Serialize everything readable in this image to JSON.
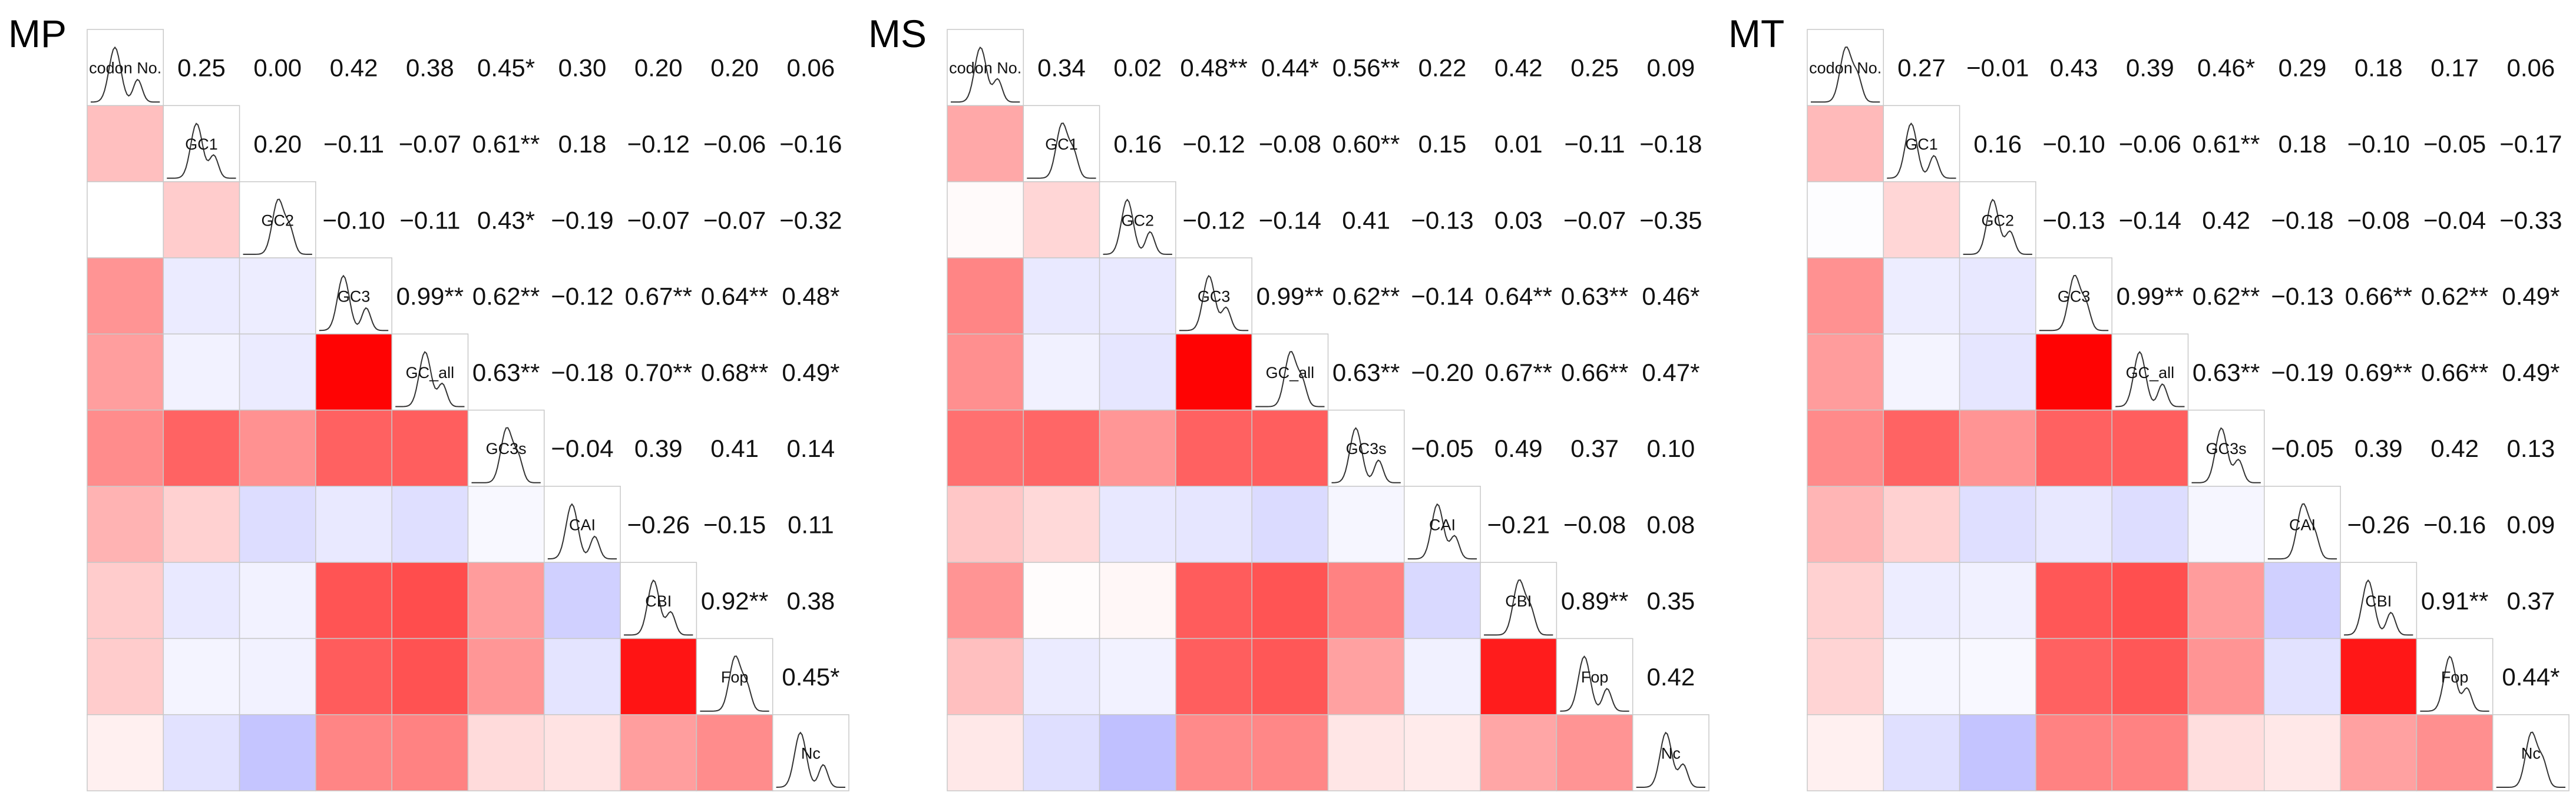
{
  "chart_data": [
    {
      "type": "heatmap",
      "title": "MP",
      "variables": [
        "codon No.",
        "GC1",
        "GC2",
        "GC3",
        "GC_all",
        "GC3s",
        "CAI",
        "CBI",
        "Fop",
        "Nc"
      ],
      "matrix": [
        [
          1,
          0.25,
          0.0,
          0.42,
          0.38,
          0.45,
          0.3,
          0.2,
          0.2,
          0.06
        ],
        [
          0.25,
          1,
          0.2,
          -0.11,
          -0.07,
          0.61,
          0.18,
          -0.12,
          -0.06,
          -0.16
        ],
        [
          0.0,
          0.2,
          1,
          -0.1,
          -0.11,
          0.43,
          -0.19,
          -0.07,
          -0.07,
          -0.32
        ],
        [
          0.42,
          -0.11,
          -0.1,
          1,
          0.99,
          0.62,
          -0.12,
          0.67,
          0.64,
          0.48
        ],
        [
          0.38,
          -0.07,
          -0.11,
          0.99,
          1,
          0.63,
          -0.18,
          0.7,
          0.68,
          0.49
        ],
        [
          0.45,
          0.61,
          0.43,
          0.62,
          0.63,
          1,
          -0.04,
          0.39,
          0.41,
          0.14
        ],
        [
          0.3,
          0.18,
          -0.19,
          -0.12,
          -0.18,
          -0.04,
          1,
          -0.26,
          -0.15,
          0.11
        ],
        [
          0.2,
          -0.12,
          -0.07,
          0.67,
          0.7,
          0.39,
          -0.26,
          1,
          0.92,
          0.38
        ],
        [
          0.2,
          -0.06,
          -0.07,
          0.64,
          0.68,
          0.41,
          -0.15,
          0.92,
          1,
          0.45
        ],
        [
          0.06,
          -0.16,
          -0.32,
          0.48,
          0.49,
          0.14,
          0.11,
          0.38,
          0.45,
          1
        ]
      ],
      "labels": [
        [
          "",
          "0.25",
          "0.00",
          "0.42",
          "0.38",
          "0.45*",
          "0.30",
          "0.20",
          "0.20",
          "0.06"
        ],
        [
          "",
          "",
          "0.20",
          "−0.11",
          "−0.07",
          "0.61**",
          "0.18",
          "−0.12",
          "−0.06",
          "−0.16"
        ],
        [
          "",
          "",
          "",
          "−0.10",
          "−0.11",
          "0.43*",
          "−0.19",
          "−0.07",
          "−0.07",
          "−0.32"
        ],
        [
          "",
          "",
          "",
          "",
          "0.99**",
          "0.62**",
          "−0.12",
          "0.67**",
          "0.64**",
          "0.48*"
        ],
        [
          "",
          "",
          "",
          "",
          "",
          "0.63**",
          "−0.18",
          "0.70**",
          "0.68**",
          "0.49*"
        ],
        [
          "",
          "",
          "",
          "",
          "",
          "",
          "−0.04",
          "0.39",
          "0.41",
          "0.14"
        ],
        [
          "",
          "",
          "",
          "",
          "",
          "",
          "",
          "−0.26",
          "−0.15",
          "0.11"
        ],
        [
          "",
          "",
          "",
          "",
          "",
          "",
          "",
          "",
          "0.92**",
          "0.38"
        ],
        [
          "",
          "",
          "",
          "",
          "",
          "",
          "",
          "",
          "",
          "0.45*"
        ],
        [
          "",
          "",
          "",
          "",
          "",
          "",
          "",
          "",
          "",
          ""
        ]
      ]
    },
    {
      "type": "heatmap",
      "title": "MS",
      "variables": [
        "codon No.",
        "GC1",
        "GC2",
        "GC3",
        "GC_all",
        "GC3s",
        "CAI",
        "CBI",
        "Fop",
        "Nc"
      ],
      "matrix": [
        [
          1,
          0.34,
          0.02,
          0.48,
          0.44,
          0.56,
          0.22,
          0.42,
          0.25,
          0.09
        ],
        [
          0.34,
          1,
          0.16,
          -0.12,
          -0.08,
          0.6,
          0.15,
          0.01,
          -0.11,
          -0.18
        ],
        [
          0.02,
          0.16,
          1,
          -0.12,
          -0.14,
          0.41,
          -0.13,
          0.03,
          -0.07,
          -0.35
        ],
        [
          0.48,
          -0.12,
          -0.12,
          1,
          0.99,
          0.62,
          -0.14,
          0.64,
          0.63,
          0.46
        ],
        [
          0.44,
          -0.08,
          -0.14,
          0.99,
          1,
          0.63,
          -0.2,
          0.67,
          0.66,
          0.47
        ],
        [
          0.56,
          0.6,
          0.41,
          0.62,
          0.63,
          1,
          -0.05,
          0.49,
          0.37,
          0.1
        ],
        [
          0.22,
          0.15,
          -0.13,
          -0.14,
          -0.2,
          -0.05,
          1,
          -0.21,
          -0.08,
          0.08
        ],
        [
          0.42,
          0.01,
          0.03,
          0.64,
          0.67,
          0.49,
          -0.21,
          1,
          0.89,
          0.35
        ],
        [
          0.25,
          -0.11,
          -0.07,
          0.63,
          0.66,
          0.37,
          -0.08,
          0.89,
          1,
          0.42
        ],
        [
          0.09,
          -0.18,
          -0.35,
          0.46,
          0.47,
          0.1,
          0.08,
          0.35,
          0.42,
          1
        ]
      ],
      "labels": [
        [
          "",
          "0.34",
          "0.02",
          "0.48**",
          "0.44*",
          "0.56**",
          "0.22",
          "0.42",
          "0.25",
          "0.09"
        ],
        [
          "",
          "",
          "0.16",
          "−0.12",
          "−0.08",
          "0.60**",
          "0.15",
          "0.01",
          "−0.11",
          "−0.18"
        ],
        [
          "",
          "",
          "",
          "−0.12",
          "−0.14",
          "0.41",
          "−0.13",
          "0.03",
          "−0.07",
          "−0.35"
        ],
        [
          "",
          "",
          "",
          "",
          "0.99**",
          "0.62**",
          "−0.14",
          "0.64**",
          "0.63**",
          "0.46*"
        ],
        [
          "",
          "",
          "",
          "",
          "",
          "0.63**",
          "−0.20",
          "0.67**",
          "0.66**",
          "0.47*"
        ],
        [
          "",
          "",
          "",
          "",
          "",
          "",
          "−0.05",
          "0.49",
          "0.37",
          "0.10"
        ],
        [
          "",
          "",
          "",
          "",
          "",
          "",
          "",
          "−0.21",
          "−0.08",
          "0.08"
        ],
        [
          "",
          "",
          "",
          "",
          "",
          "",
          "",
          "",
          "0.89**",
          "0.35"
        ],
        [
          "",
          "",
          "",
          "",
          "",
          "",
          "",
          "",
          "",
          "0.42"
        ],
        [
          "",
          "",
          "",
          "",
          "",
          "",
          "",
          "",
          "",
          ""
        ]
      ]
    },
    {
      "type": "heatmap",
      "title": "MT",
      "variables": [
        "codon No.",
        "GC1",
        "GC2",
        "GC3",
        "GC_all",
        "GC3s",
        "CAI",
        "CBI",
        "Fop",
        "Nc"
      ],
      "matrix": [
        [
          1,
          0.27,
          -0.01,
          0.43,
          0.39,
          0.46,
          0.29,
          0.18,
          0.17,
          0.06
        ],
        [
          0.27,
          1,
          0.16,
          -0.1,
          -0.06,
          0.61,
          0.18,
          -0.1,
          -0.05,
          -0.17
        ],
        [
          -0.01,
          0.16,
          1,
          -0.13,
          -0.14,
          0.42,
          -0.18,
          -0.08,
          -0.04,
          -0.33
        ],
        [
          0.43,
          -0.1,
          -0.13,
          1,
          0.99,
          0.62,
          -0.13,
          0.66,
          0.62,
          0.49
        ],
        [
          0.39,
          -0.06,
          -0.14,
          0.99,
          1,
          0.63,
          -0.19,
          0.69,
          0.66,
          0.49
        ],
        [
          0.46,
          0.61,
          0.42,
          0.62,
          0.63,
          1,
          -0.05,
          0.39,
          0.42,
          0.13
        ],
        [
          0.29,
          0.18,
          -0.18,
          -0.13,
          -0.19,
          -0.05,
          1,
          -0.26,
          -0.16,
          0.09
        ],
        [
          0.18,
          -0.1,
          -0.08,
          0.66,
          0.69,
          0.39,
          -0.26,
          1,
          0.91,
          0.37
        ],
        [
          0.17,
          -0.05,
          -0.04,
          0.62,
          0.66,
          0.42,
          -0.16,
          0.91,
          1,
          0.44
        ],
        [
          0.06,
          -0.17,
          -0.33,
          0.49,
          0.49,
          0.13,
          0.09,
          0.37,
          0.44,
          1
        ]
      ],
      "labels": [
        [
          "",
          "0.27",
          "−0.01",
          "0.43",
          "0.39",
          "0.46*",
          "0.29",
          "0.18",
          "0.17",
          "0.06"
        ],
        [
          "",
          "",
          "0.16",
          "−0.10",
          "−0.06",
          "0.61**",
          "0.18",
          "−0.10",
          "−0.05",
          "−0.17"
        ],
        [
          "",
          "",
          "",
          "−0.13",
          "−0.14",
          "0.42",
          "−0.18",
          "−0.08",
          "−0.04",
          "−0.33"
        ],
        [
          "",
          "",
          "",
          "",
          "0.99**",
          "0.62**",
          "−0.13",
          "0.66**",
          "0.62**",
          "0.49*"
        ],
        [
          "",
          "",
          "",
          "",
          "",
          "0.63**",
          "−0.19",
          "0.69**",
          "0.66**",
          "0.49*"
        ],
        [
          "",
          "",
          "",
          "",
          "",
          "",
          "−0.05",
          "0.39",
          "0.42",
          "0.13"
        ],
        [
          "",
          "",
          "",
          "",
          "",
          "",
          "",
          "−0.26",
          "−0.16",
          "0.09"
        ],
        [
          "",
          "",
          "",
          "",
          "",
          "",
          "",
          "",
          "0.91**",
          "0.37"
        ],
        [
          "",
          "",
          "",
          "",
          "",
          "",
          "",
          "",
          "",
          "0.44*"
        ],
        [
          "",
          "",
          "",
          "",
          "",
          "",
          "",
          "",
          "",
          ""
        ]
      ]
    }
  ],
  "colors": {
    "positive": "#ff0000",
    "negative": "#4b4bff",
    "neutral": "#ffffff",
    "grid": "#c8c8c8",
    "text": "#111111"
  }
}
